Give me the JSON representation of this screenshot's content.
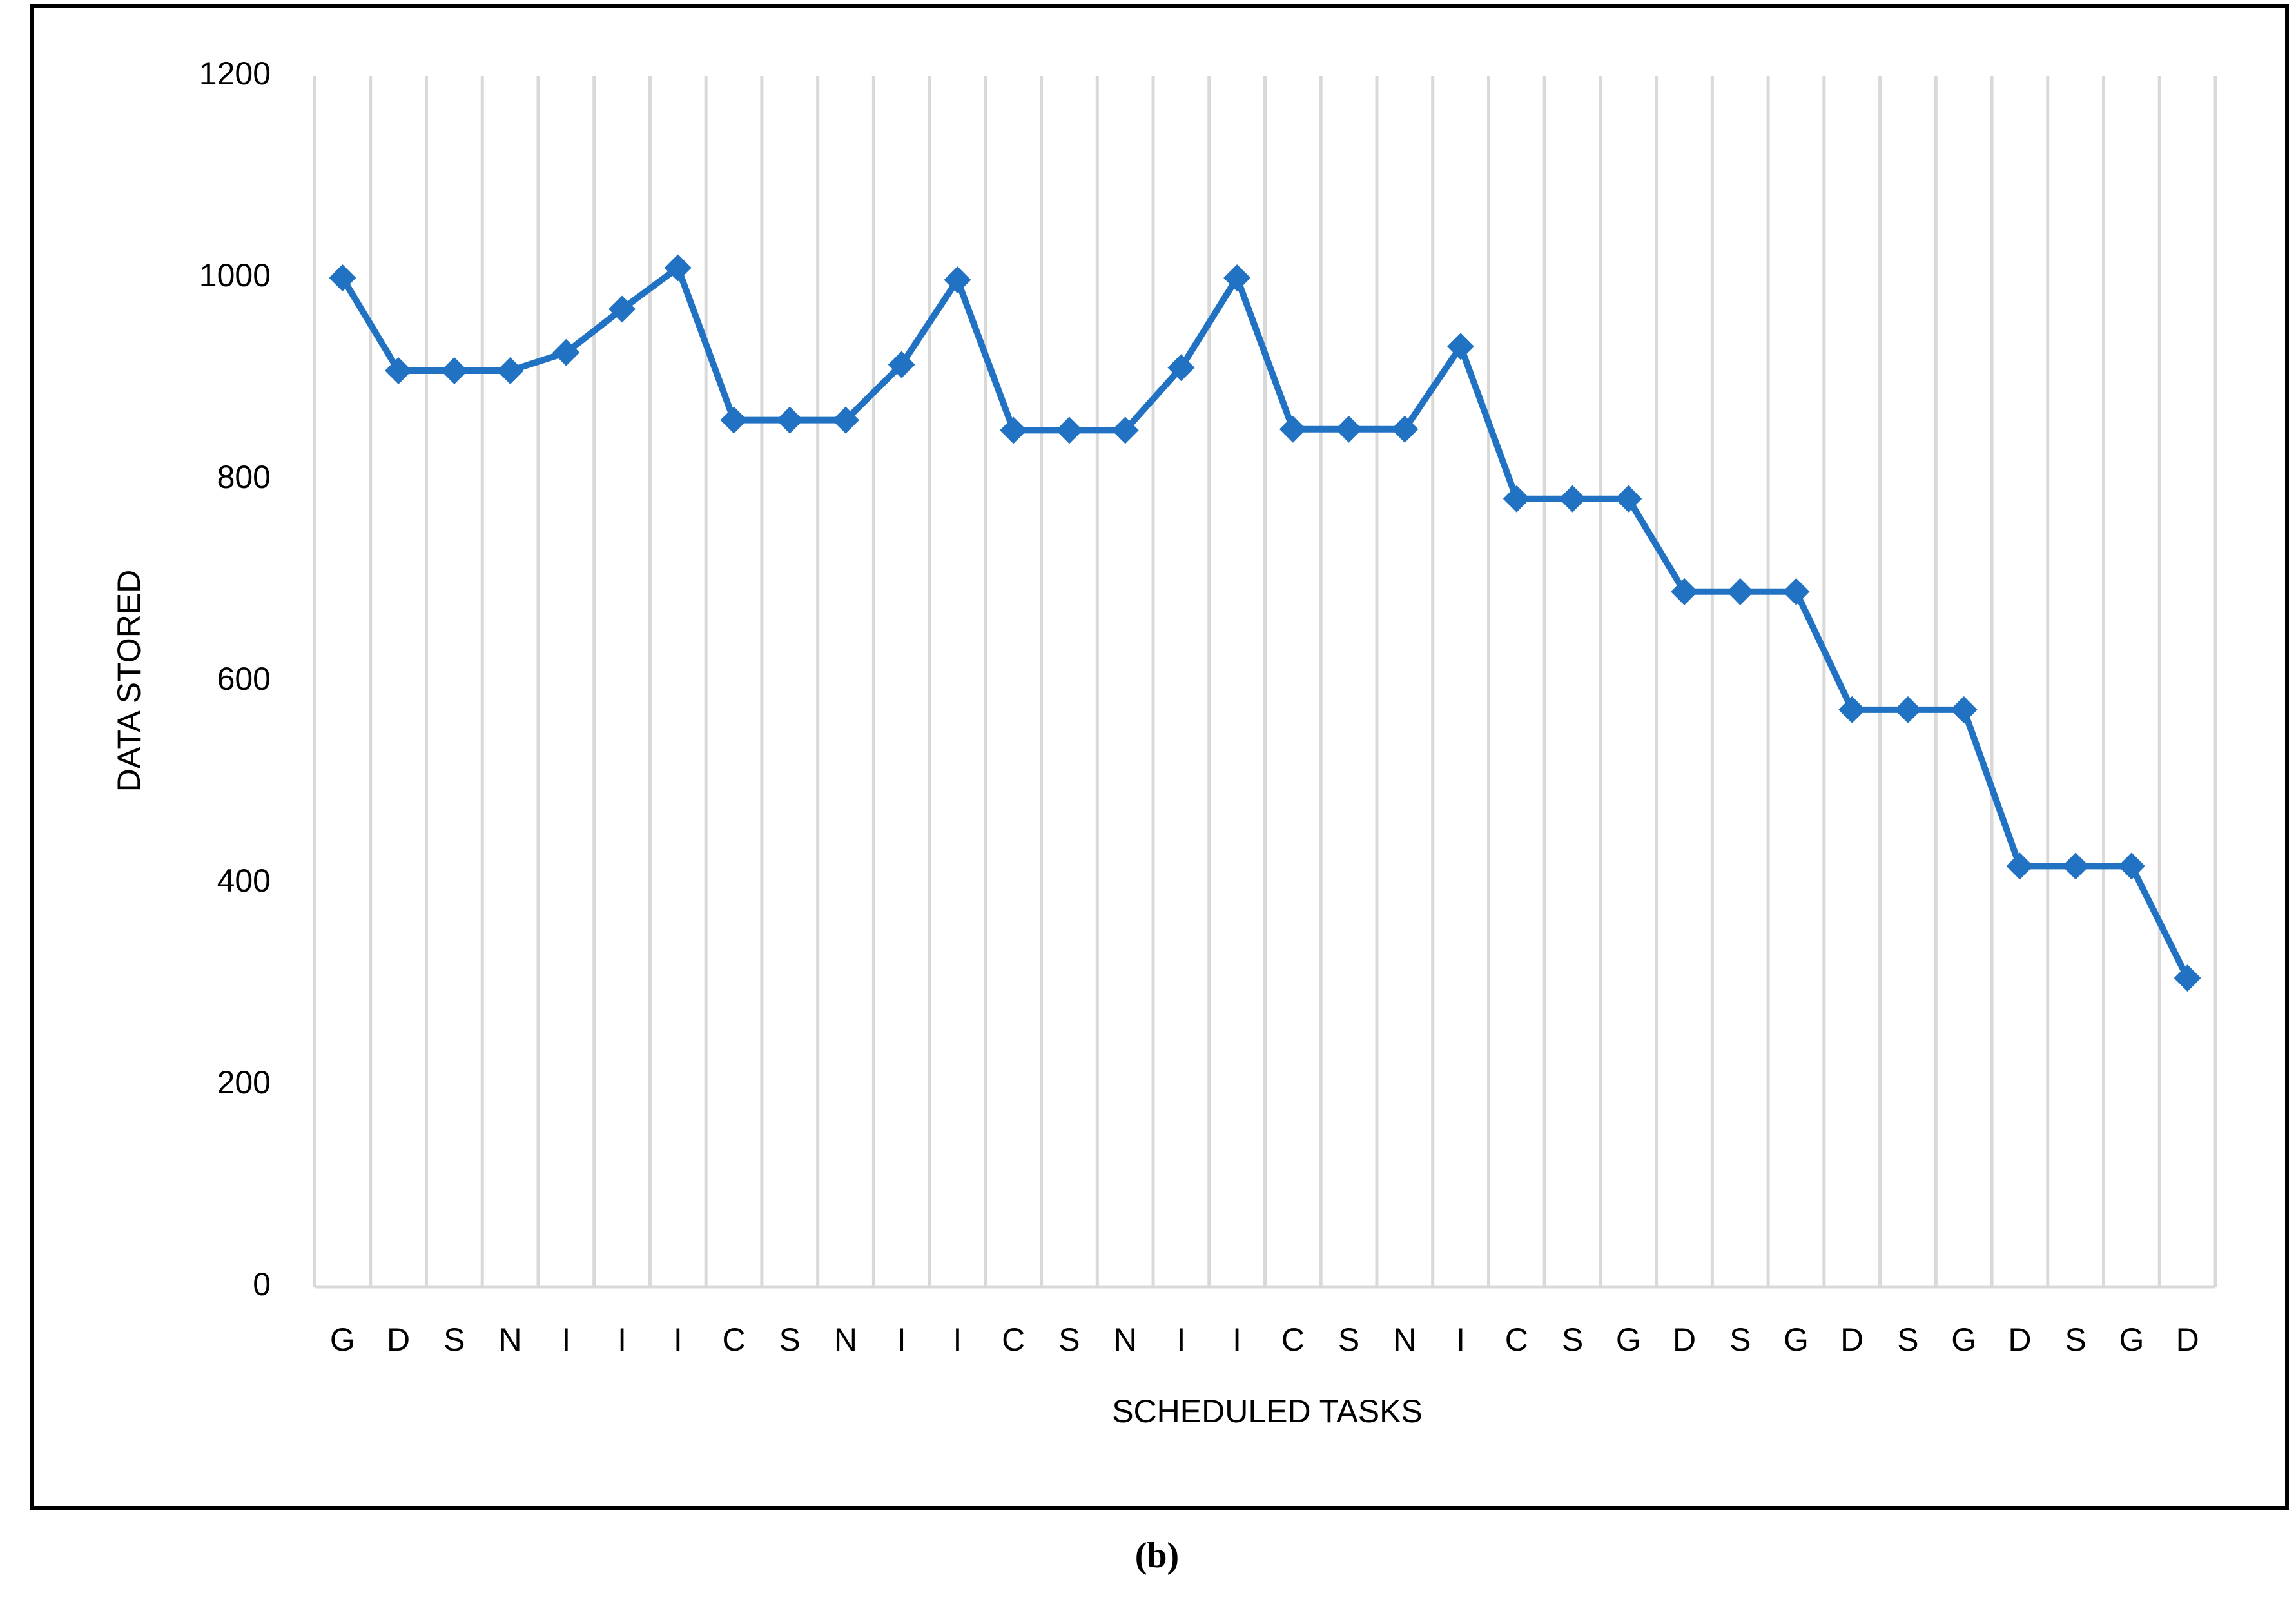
{
  "chart_data": {
    "type": "line",
    "x_label": "SCHEDULED TASKS",
    "y_label": "DATA STORED",
    "caption": "(b)",
    "categories": [
      "G",
      "D",
      "S",
      "N",
      "I",
      "I",
      "I",
      "C",
      "S",
      "N",
      "I",
      "I",
      "C",
      "S",
      "N",
      "I",
      "I",
      "C",
      "S",
      "N",
      "I",
      "C",
      "S",
      "G",
      "D",
      "S",
      "G",
      "D",
      "S",
      "G",
      "D",
      "S",
      "G",
      "D"
    ],
    "values": [
      1000,
      908,
      908,
      908,
      926,
      969,
      1010,
      859,
      859,
      859,
      914,
      998,
      849,
      849,
      849,
      911,
      1000,
      850,
      850,
      850,
      932,
      781,
      781,
      781,
      689,
      689,
      689,
      572,
      572,
      572,
      417,
      417,
      417,
      306
    ],
    "color": "#2272c3",
    "marker": "diamond",
    "ylim": [
      0,
      1200
    ],
    "yticks": [
      0,
      200,
      400,
      600,
      800,
      1000,
      1200
    ],
    "grid": true
  }
}
